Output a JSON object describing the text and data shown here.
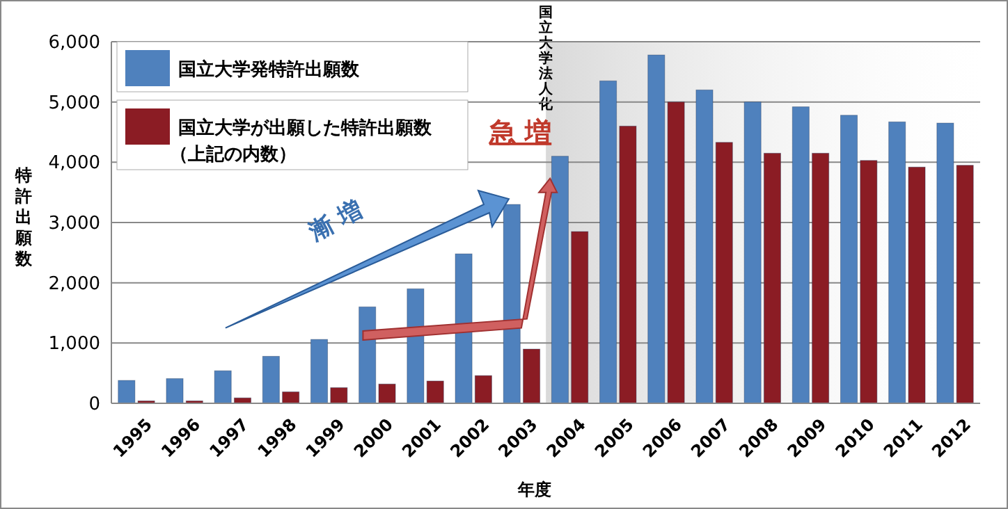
{
  "chart_data": {
    "type": "bar",
    "xlabel": "年度",
    "ylabel": "特許出願数",
    "categories": [
      "1995",
      "1996",
      "1997",
      "1998",
      "1999",
      "2000",
      "2001",
      "2002",
      "2003",
      "2004",
      "2005",
      "2006",
      "2007",
      "2008",
      "2009",
      "2010",
      "2011",
      "2012"
    ],
    "series": [
      {
        "name": "国立大学発特許出願数",
        "color": "#4f81bd",
        "values": [
          380,
          410,
          540,
          780,
          1060,
          1600,
          1900,
          2480,
          3300,
          4100,
          5350,
          5780,
          5200,
          5000,
          4920,
          4780,
          4670,
          4650
        ]
      },
      {
        "name": "国立大学が出願した特許出願数（上記の内数）",
        "color": "#8b1c24",
        "values": [
          40,
          40,
          90,
          190,
          260,
          320,
          370,
          460,
          900,
          2850,
          4600,
          5000,
          4330,
          4150,
          4150,
          4030,
          3920,
          3950
        ]
      }
    ],
    "ylim": [
      0,
      6000
    ],
    "yticks": [
      {
        "value": 0,
        "label": "0"
      },
      {
        "value": 1000,
        "label": "1,000"
      },
      {
        "value": 2000,
        "label": "2,000"
      },
      {
        "value": 3000,
        "label": "3,000"
      },
      {
        "value": 4000,
        "label": "4,000"
      },
      {
        "value": 5000,
        "label": "5,000"
      },
      {
        "value": 6000,
        "label": "6,000"
      }
    ],
    "grid": "y",
    "legend": "top left",
    "bands": [
      {
        "axis": "x",
        "from": "2004",
        "to": "2012",
        "label": "国立大学法人化",
        "color": "#d9d9d9"
      }
    ],
    "annotations": [
      "漸増",
      "急増"
    ]
  }
}
